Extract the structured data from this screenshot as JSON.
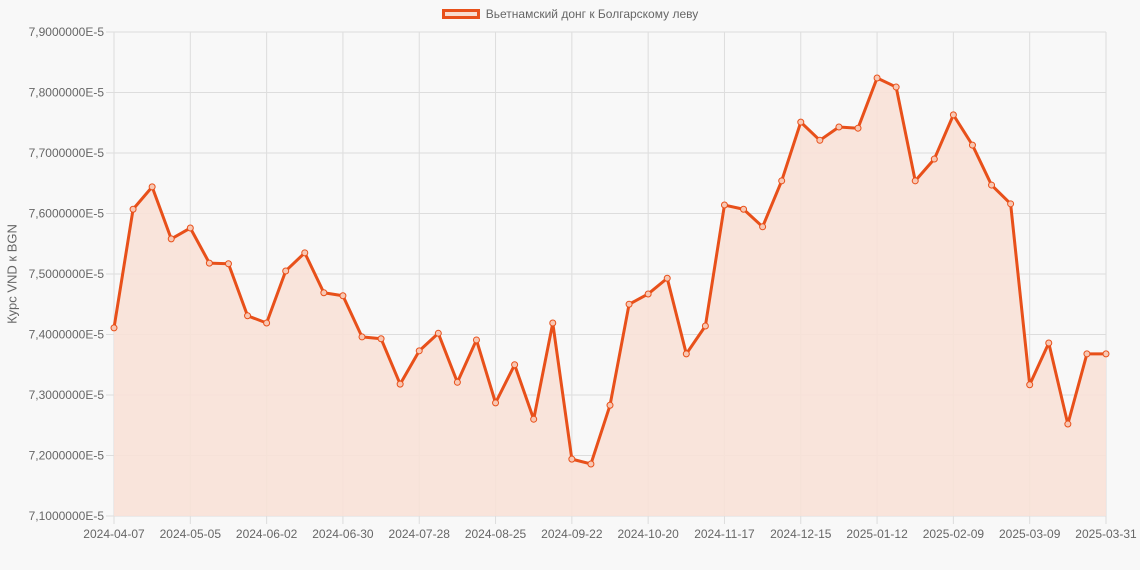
{
  "chart_data": {
    "type": "area",
    "title": "",
    "legend": [
      "Вьетнамский донг к Болгарскому леву"
    ],
    "legend_position": "top",
    "xlabel": "",
    "ylabel": "Курс VND к BGN",
    "ylim": [
      7.1e-05,
      7.9e-05
    ],
    "y_ticks": [
      "7,1000000E-5",
      "7,2000000E-5",
      "7,3000000E-5",
      "7,4000000E-5",
      "7,5000000E-5",
      "7,6000000E-5",
      "7,7000000E-5",
      "7,8000000E-5",
      "7,9000000E-5"
    ],
    "x_tick_labels": [
      "2024-04-07",
      "2024-05-05",
      "2024-06-02",
      "2024-06-30",
      "2024-07-28",
      "2024-08-25",
      "2024-09-22",
      "2024-10-20",
      "2024-11-17",
      "2024-12-15",
      "2025-01-12",
      "2025-02-09",
      "2025-03-09",
      "2025-03-31"
    ],
    "x_tick_indices": [
      0,
      4,
      8,
      12,
      16,
      20,
      24,
      28,
      32,
      36,
      40,
      44,
      48,
      52
    ],
    "grid": true,
    "colors": {
      "line": "#e8501a",
      "fill": "#f8e1d7",
      "grid": "#dddddd",
      "text": "#666666"
    },
    "series": [
      {
        "name": "Вьетнамский донг к Болгарскому леву",
        "values": [
          7.411,
          7.607,
          7.644,
          7.558,
          7.576,
          7.518,
          7.517,
          7.431,
          7.419,
          7.505,
          7.535,
          7.469,
          7.464,
          7.396,
          7.393,
          7.318,
          7.373,
          7.402,
          7.321,
          7.391,
          7.287,
          7.35,
          7.26,
          7.419,
          7.194,
          7.186,
          7.283,
          7.45,
          7.467,
          7.493,
          7.368,
          7.414,
          7.614,
          7.607,
          7.578,
          7.654,
          7.751,
          7.721,
          7.743,
          7.741,
          7.824,
          7.809,
          7.654,
          7.69,
          7.763,
          7.713,
          7.647,
          7.616,
          7.317,
          7.386,
          7.252,
          7.368,
          7.368
        ],
        "value_scale": "E-5"
      }
    ]
  }
}
